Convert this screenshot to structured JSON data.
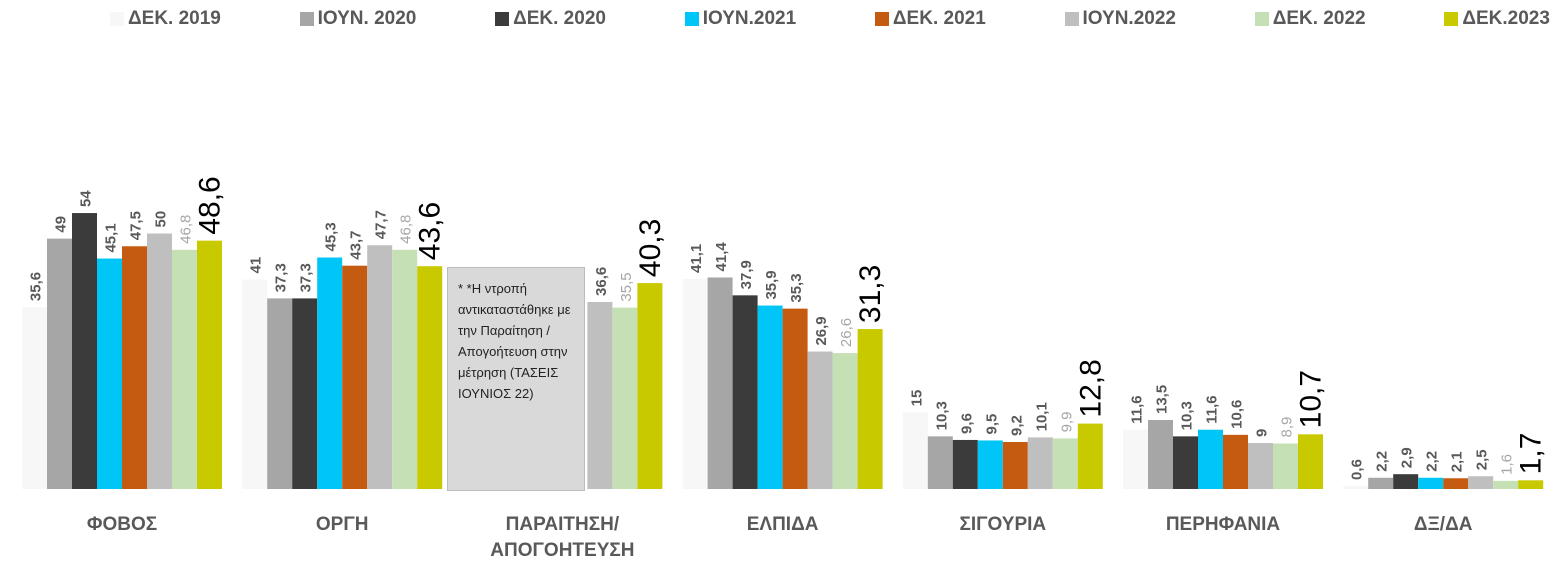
{
  "chart_data": {
    "type": "bar",
    "legend": "top",
    "categories": [
      "ΦΟΒΟΣ",
      "ΟΡΓΗ",
      "ΠΑΡΑΙΤΗΣΗ/ ΑΠΟΓΟΗΤΕΥΣΗ",
      "ΕΛΠΙΔΑ",
      "ΣΙΓΟΥΡΙΑ",
      "ΠΕΡΗΦΑΝΙΑ",
      "ΔΞ/ΔΑ"
    ],
    "series": [
      {
        "name": "ΔΕΚ. 2019",
        "color": "#f7f7f7",
        "values": [
          35.6,
          41,
          null,
          41.1,
          15,
          11.6,
          0.6
        ],
        "value_labels": [
          "35,6",
          "41",
          null,
          "41,1",
          "15",
          "11,6",
          "0,6"
        ]
      },
      {
        "name": "ΙΟΥΝ. 2020",
        "color": "#a6a6a6",
        "values": [
          49,
          37.3,
          null,
          41.4,
          10.3,
          13.5,
          2.2
        ],
        "value_labels": [
          "49",
          "37,3",
          null,
          "41,4",
          "10,3",
          "13,5",
          "2,2"
        ]
      },
      {
        "name": "ΔΕΚ. 2020",
        "color": "#3b3b3b",
        "values": [
          54,
          37.3,
          null,
          37.9,
          9.6,
          10.3,
          2.9
        ],
        "value_labels": [
          "54",
          "37,3",
          null,
          "37,9",
          "9,6",
          "10,3",
          "2,9"
        ]
      },
      {
        "name": "ΙΟΥΝ.2021",
        "color": "#00c6f7",
        "values": [
          45.1,
          45.3,
          null,
          35.9,
          9.5,
          11.6,
          2.2
        ],
        "value_labels": [
          "45,1",
          "45,3",
          null,
          "35,9",
          "9,5",
          "11,6",
          "2,2"
        ]
      },
      {
        "name": "ΔΕΚ. 2021",
        "color": "#c55a11",
        "values": [
          47.5,
          43.7,
          null,
          35.3,
          9.2,
          10.6,
          2.1
        ],
        "value_labels": [
          "47,5",
          "43,7",
          null,
          "35,3",
          "9,2",
          "10,6",
          "2,1"
        ]
      },
      {
        "name": "ΙΟΥΝ.2022",
        "color": "#bfbfbf",
        "values": [
          50,
          47.7,
          36.6,
          26.9,
          10.1,
          9,
          2.5
        ],
        "value_labels": [
          "50",
          "47,7",
          "36,6",
          "26,9",
          "10,1",
          "9",
          "2,5"
        ]
      },
      {
        "name": "ΔΕΚ. 2022",
        "color": "#c5e0b4",
        "values": [
          46.8,
          46.8,
          35.5,
          26.6,
          9.9,
          8.9,
          1.6
        ],
        "value_labels": [
          "46,8",
          "46,8",
          "35,5",
          "26,6",
          "9,9",
          "8,9",
          "1,6"
        ]
      },
      {
        "name": "ΔΕΚ.2023",
        "color": "#c9c900",
        "values": [
          48.6,
          43.6,
          40.3,
          31.3,
          12.8,
          10.7,
          1.7
        ],
        "value_labels": [
          "48,6",
          "43,6",
          "40,3",
          "31,3",
          "12,8",
          "10,7",
          "1,7"
        ]
      }
    ],
    "annotation": "* *Η ντροπή αντικαταστάθηκε με την Παραίτηση / Απογοήτευση στην μέτρηση (ΤΑΣΕΙΣ ΙΟΥΝΙΟΣ 22)"
  }
}
